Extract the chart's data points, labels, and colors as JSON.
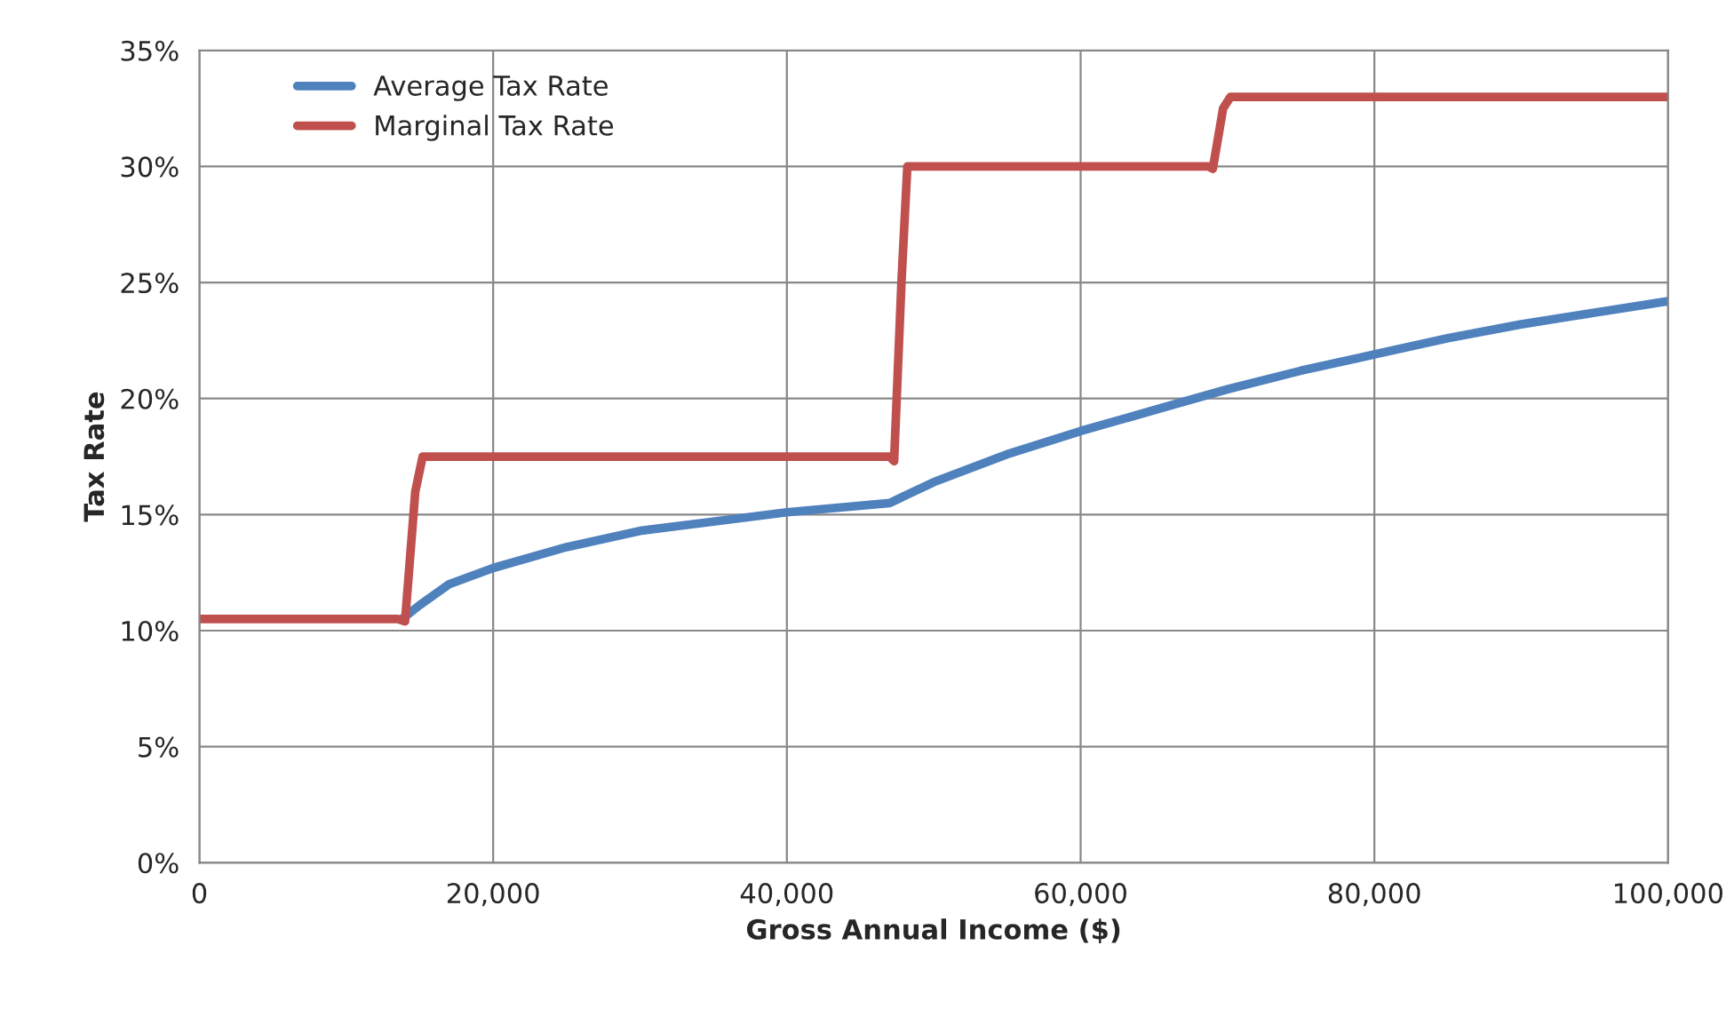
{
  "chart_data": {
    "type": "line",
    "xlabel": "Gross Annual Income ($)",
    "ylabel": "Tax Rate",
    "series": [
      {
        "name": "Average Tax Rate",
        "color": "#4f81bd",
        "x": [
          13800,
          15000,
          17000,
          20000,
          25000,
          30000,
          35000,
          40000,
          47000,
          50000,
          55000,
          60000,
          65000,
          70000,
          75000,
          80000,
          85000,
          90000,
          95000,
          100000
        ],
        "values": [
          10.5,
          11.1,
          12.0,
          12.7,
          13.6,
          14.3,
          14.7,
          15.1,
          15.5,
          16.4,
          17.6,
          18.6,
          19.5,
          20.4,
          21.2,
          21.9,
          22.6,
          23.2,
          23.7,
          24.2
        ]
      },
      {
        "name": "Marginal Tax Rate",
        "color": "#c0504d",
        "x": [
          0,
          13500,
          14000,
          14700,
          15200,
          47000,
          47300,
          47800,
          48200,
          68700,
          69000,
          69700,
          70200,
          100000
        ],
        "values": [
          10.5,
          10.5,
          10.4,
          16,
          17.5,
          17.5,
          17.3,
          25,
          30,
          30,
          29.9,
          32.5,
          33,
          33
        ]
      }
    ],
    "xlim": [
      0,
      100000
    ],
    "xticks": [
      0,
      {
        "value": 20000,
        "label": "20,000"
      },
      {
        "value": 40000,
        "label": "40,000"
      },
      {
        "value": 60000,
        "label": "60,000"
      },
      {
        "value": 80000,
        "label": "80,000"
      },
      {
        "value": 100000,
        "label": "100,000"
      }
    ],
    "ylim": [
      0,
      35
    ],
    "yticks": [
      {
        "value": 0,
        "label": "0%"
      },
      {
        "value": 5,
        "label": "5%"
      },
      {
        "value": 10,
        "label": "10%"
      },
      {
        "value": 15,
        "label": "15%"
      },
      {
        "value": 20,
        "label": "20%"
      },
      {
        "value": 25,
        "label": "25%"
      },
      {
        "value": 30,
        "label": "30%"
      },
      {
        "value": 35,
        "label": "35%"
      }
    ],
    "grid": true,
    "legend": "top left",
    "marker": "none",
    "line_style": "solid"
  }
}
